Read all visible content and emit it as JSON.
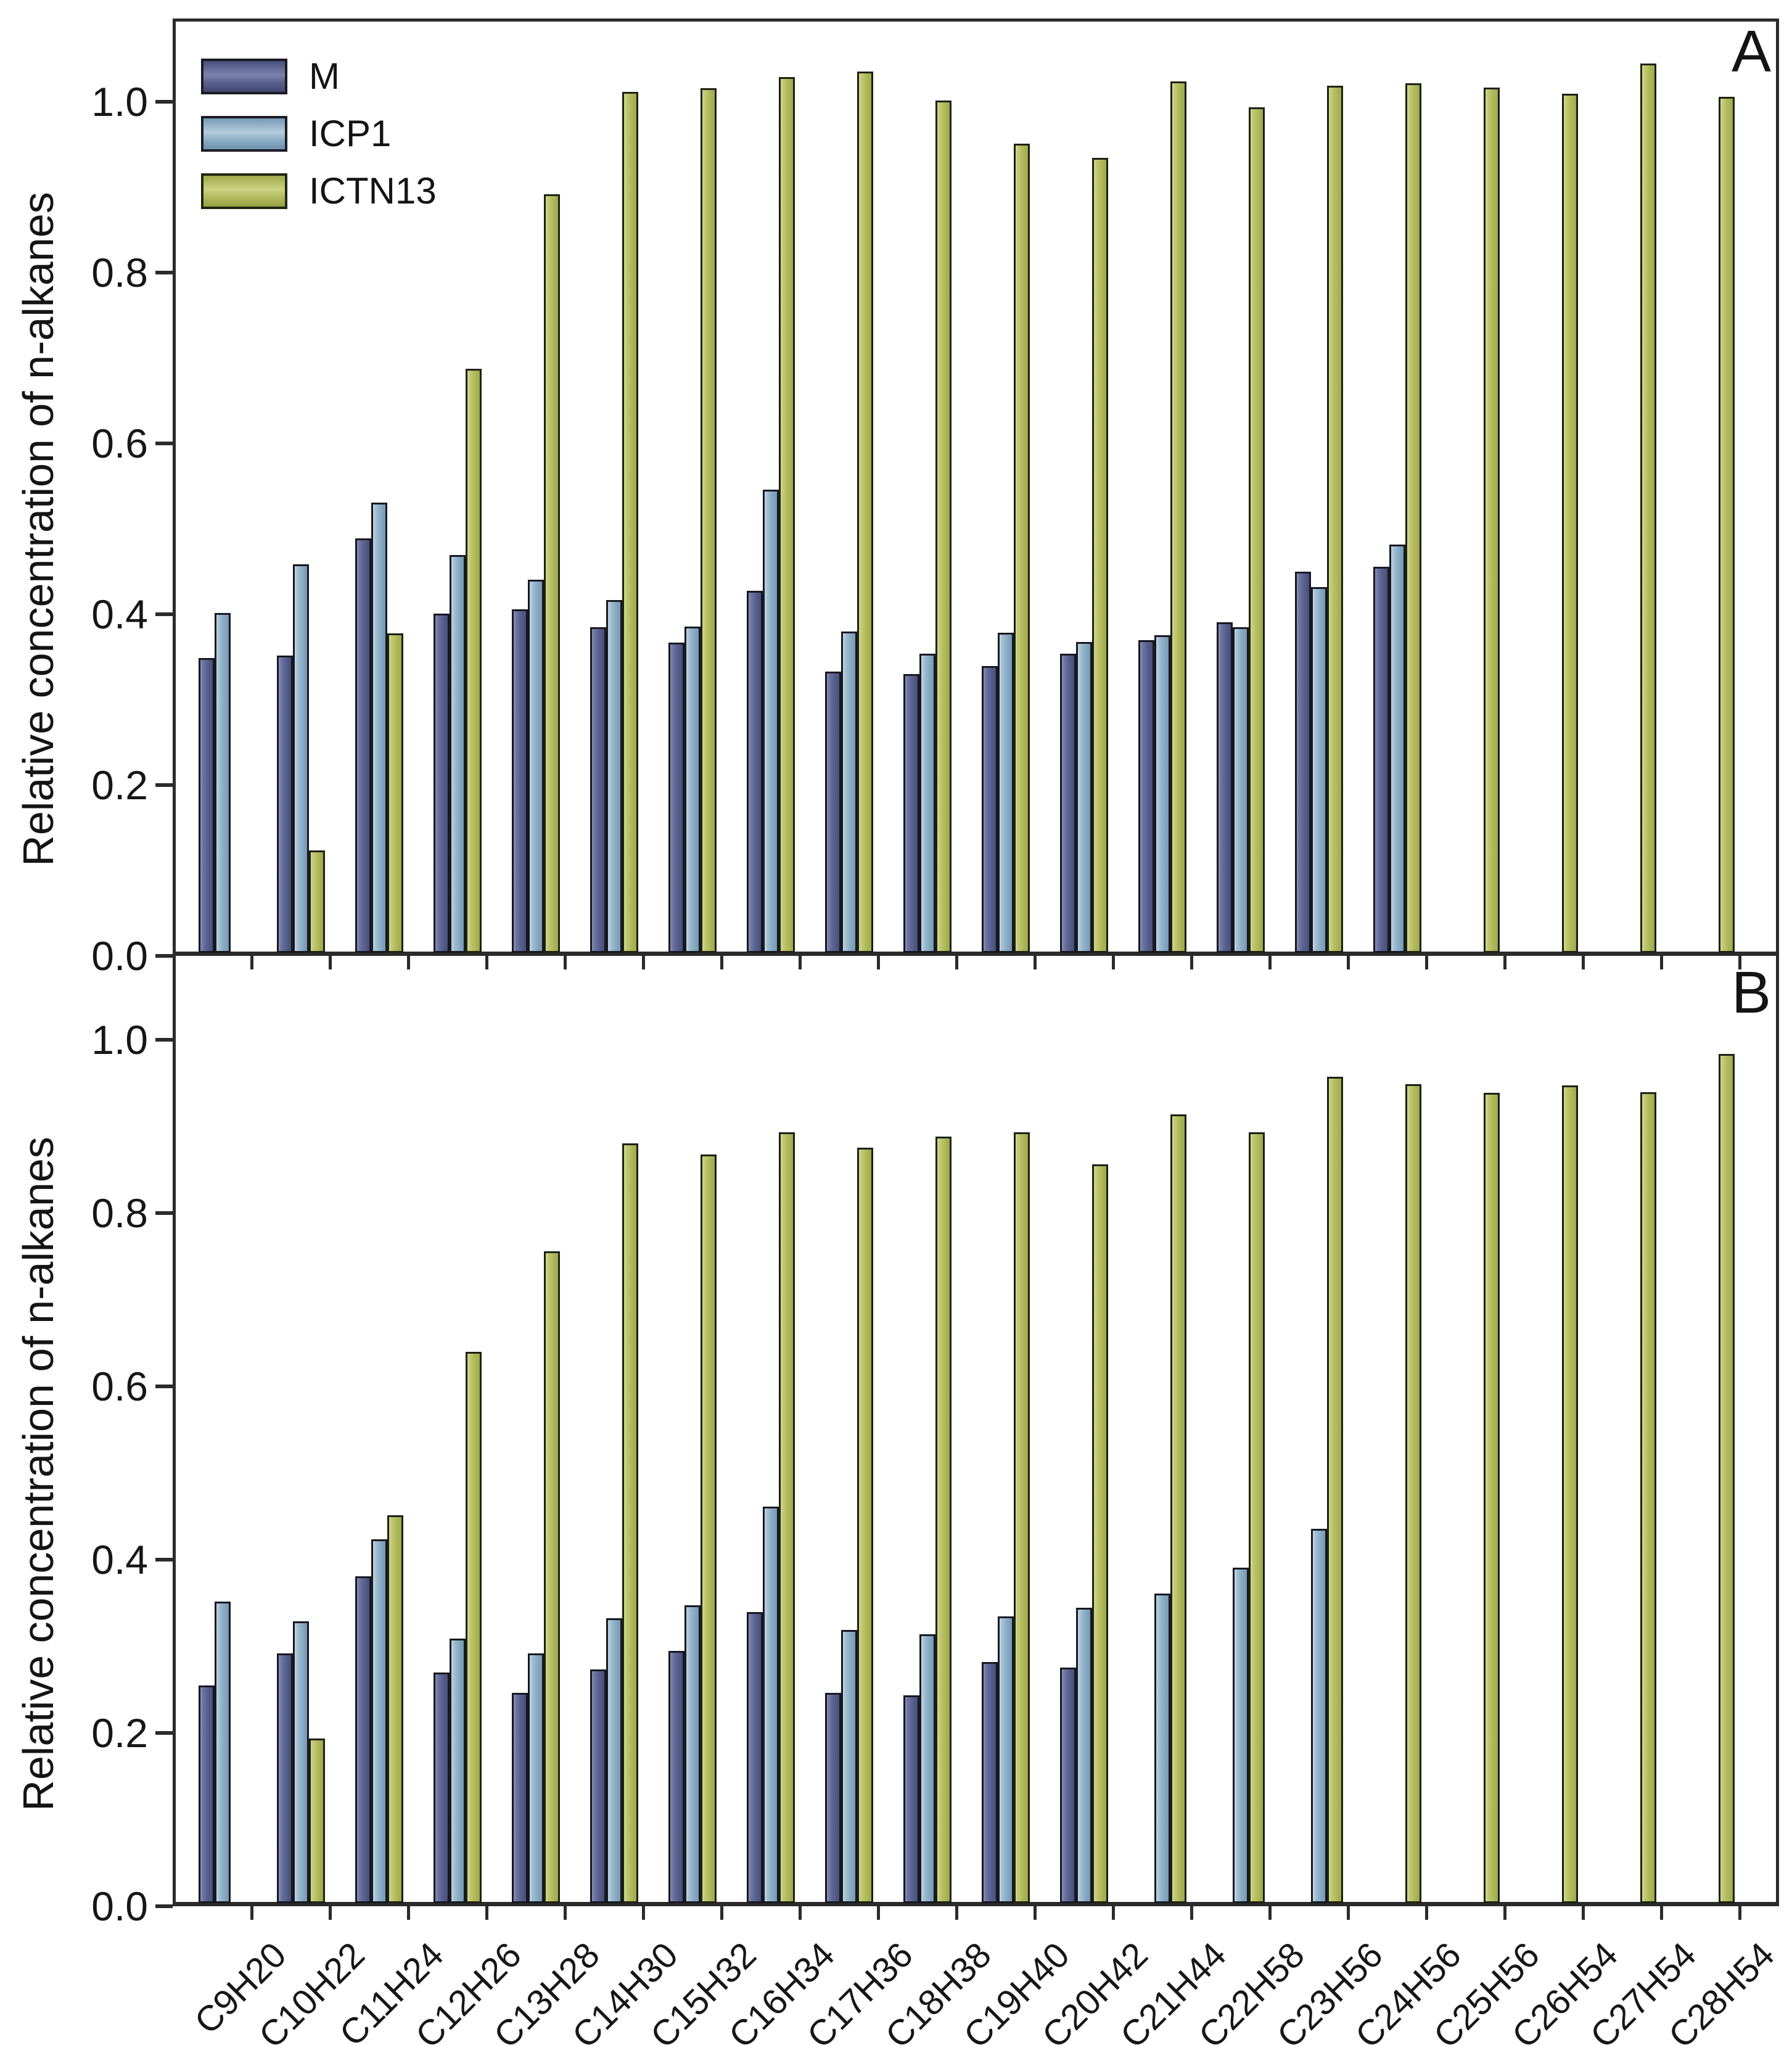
{
  "figure": {
    "background": "#ffffff",
    "axis_color": "#2b2b2b",
    "text_color": "#161616"
  },
  "legend": {
    "position": "top-left-inside-panel-A",
    "items": [
      {
        "label": "M",
        "color": "#59628f"
      },
      {
        "label": "ICP1",
        "color": "#8badc5"
      },
      {
        "label": "ICTN13",
        "color": "#b2ba5c"
      }
    ]
  },
  "chart_data": [
    {
      "type": "bar",
      "panel_label": "A",
      "ylabel": "Relative concentration of n-alkanes",
      "xlabel": "",
      "ylim": [
        0,
        1.1
      ],
      "yticks": [
        0.0,
        0.2,
        0.4,
        0.6,
        0.8,
        1.0
      ],
      "grid": false,
      "legend_position": "upper left",
      "categories": [
        "C9H20",
        "C10H22",
        "C11H24",
        "C12H26",
        "C13H28",
        "C14H30",
        "C15H32",
        "C16H34",
        "C17H36",
        "C18H38",
        "C19H40",
        "C20H42",
        "C21H44",
        "C22H58",
        "C23H56",
        "C24H56",
        "C25H56",
        "C26H54",
        "C27H54",
        "C28H54"
      ],
      "series": [
        {
          "name": "M",
          "color": "#59628f",
          "values": [
            0.345,
            0.348,
            0.485,
            0.397,
            0.402,
            0.381,
            0.363,
            0.424,
            0.329,
            0.326,
            0.336,
            0.35,
            0.366,
            0.387,
            0.446,
            0.452,
            null,
            null,
            null,
            null
          ]
        },
        {
          "name": "ICP1",
          "color": "#8badc5",
          "values": [
            0.398,
            0.455,
            0.527,
            0.466,
            0.437,
            0.413,
            0.382,
            0.542,
            0.376,
            0.35,
            0.375,
            0.364,
            0.372,
            0.381,
            0.428,
            0.478,
            null,
            null,
            null,
            null
          ]
        },
        {
          "name": "ICTN13",
          "color": "#b2ba5c",
          "values": [
            null,
            0.12,
            0.374,
            0.684,
            0.888,
            1.008,
            1.012,
            1.025,
            1.032,
            0.998,
            0.947,
            0.931,
            1.02,
            0.99,
            1.015,
            1.018,
            1.013,
            1.006,
            1.041,
            1.002
          ]
        }
      ]
    },
    {
      "type": "bar",
      "panel_label": "B",
      "ylabel": "Relative concentration of n-alkanes",
      "xlabel": "",
      "ylim": [
        0,
        1.1
      ],
      "yticks": [
        0.0,
        0.2,
        0.4,
        0.6,
        0.8,
        1.0
      ],
      "grid": false,
      "categories": [
        "C9H20",
        "C10H22",
        "C11H24",
        "C12H26",
        "C13H28",
        "C14H30",
        "C15H32",
        "C16H34",
        "C17H36",
        "C18H38",
        "C19H40",
        "C20H42",
        "C21H44",
        "C22H58",
        "C23H56",
        "C24H56",
        "C25H56",
        "C26H54",
        "C27H54",
        "C28H54"
      ],
      "series": [
        {
          "name": "M",
          "color": "#59628f",
          "values": [
            0.251,
            0.288,
            0.377,
            0.266,
            0.243,
            0.27,
            0.291,
            0.336,
            0.243,
            0.24,
            0.278,
            0.272,
            null,
            null,
            null,
            null,
            null,
            null,
            null,
            null
          ]
        },
        {
          "name": "ICP1",
          "color": "#8badc5",
          "values": [
            0.348,
            0.325,
            0.42,
            0.305,
            0.288,
            0.329,
            0.344,
            0.458,
            0.315,
            0.31,
            0.331,
            0.341,
            0.357,
            0.387,
            0.432,
            null,
            null,
            null,
            null,
            null
          ]
        },
        {
          "name": "ICTN13",
          "color": "#b2ba5c",
          "values": [
            null,
            0.19,
            0.448,
            0.636,
            0.752,
            0.877,
            0.864,
            0.89,
            0.872,
            0.885,
            0.89,
            0.853,
            0.91,
            0.89,
            0.954,
            0.945,
            0.935,
            0.944,
            0.936,
            0.98
          ]
        }
      ]
    }
  ]
}
